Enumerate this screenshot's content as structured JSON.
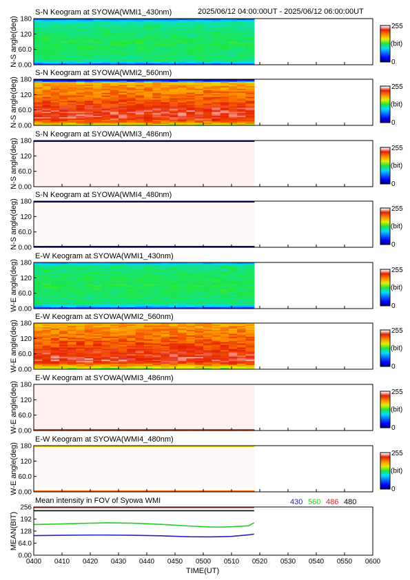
{
  "header": {
    "time_range": "2025/06/12 04:00:00UT - 2025/06/12 06:00:00UT"
  },
  "colorbar": {
    "max_label": "255",
    "unit_label": "(bit)",
    "min_label": "0"
  },
  "legend": {
    "items": [
      {
        "label": "430",
        "color": "#2222bb"
      },
      {
        "label": "560",
        "color": "#22cc22"
      },
      {
        "label": "486",
        "color": "#dd2222"
      },
      {
        "label": "480",
        "color": "#000000"
      }
    ]
  },
  "x_axis": {
    "label": "TIME(UT)",
    "ticks": [
      "0400",
      "0410",
      "0420",
      "0430",
      "0440",
      "0450",
      "0500",
      "0510",
      "0520",
      "0530",
      "0540",
      "0550",
      "0600"
    ],
    "range_minutes": [
      0,
      120
    ],
    "data_end_minute": 78
  },
  "chart_data": [
    {
      "type": "heatmap",
      "title": "S-N Keogram at SYOWA(WMI1_430nm)",
      "ylabel": "N-S angle(deg)",
      "yticks": [
        "0.00",
        "60.0",
        "120",
        "180"
      ],
      "ylim": [
        0,
        180
      ],
      "zlim": [
        0,
        255
      ],
      "profile": [
        [
          0,
          20
        ],
        [
          4,
          80
        ],
        [
          15,
          118
        ],
        [
          90,
          125
        ],
        [
          165,
          112
        ],
        [
          176,
          80
        ],
        [
          180,
          20
        ]
      ],
      "variation": 8
    },
    {
      "type": "heatmap",
      "title": "S-N Keogram at SYOWA(WMI2_560nm)",
      "ylabel": "N-S angle(deg)",
      "yticks": [
        "0.00",
        "60.0",
        "120",
        "180"
      ],
      "ylim": [
        0,
        180
      ],
      "zlim": [
        0,
        255
      ],
      "profile": [
        [
          0,
          145
        ],
        [
          8,
          190
        ],
        [
          25,
          225
        ],
        [
          60,
          225
        ],
        [
          100,
          205
        ],
        [
          150,
          190
        ],
        [
          170,
          175
        ],
        [
          173,
          10
        ],
        [
          180,
          10
        ]
      ],
      "variation": 15
    },
    {
      "type": "heatmap",
      "title": "S-N Keogram at SYOWA(WMI3_486nm)",
      "ylabel": "N-S angle(deg)",
      "yticks": [
        "0.00",
        "60.0",
        "120",
        "180"
      ],
      "ylim": [
        0,
        180
      ],
      "zlim": [
        0,
        255
      ],
      "profile": [
        [
          0,
          252
        ],
        [
          176,
          252
        ],
        [
          177,
          5
        ],
        [
          180,
          5
        ]
      ],
      "variation": 0
    },
    {
      "type": "heatmap",
      "title": "S-N Keogram at SYOWA(WMI4_480nm)",
      "ylabel": "N-S angle(deg)",
      "yticks": [
        "0.00",
        "60.0",
        "120",
        "180"
      ],
      "ylim": [
        0,
        180
      ],
      "zlim": [
        0,
        255
      ],
      "profile": [
        [
          0,
          5
        ],
        [
          5,
          5
        ],
        [
          6,
          254
        ],
        [
          172,
          254
        ],
        [
          173,
          235
        ],
        [
          175,
          5
        ],
        [
          180,
          5
        ]
      ],
      "variation": 0
    },
    {
      "type": "heatmap",
      "title": "E-W Keogram at SYOWA(WMI1_430nm)",
      "ylabel": "W-E angle(deg)",
      "yticks": [
        "0.00",
        "60.0",
        "120",
        "180"
      ],
      "ylim": [
        0,
        180
      ],
      "zlim": [
        0,
        255
      ],
      "profile": [
        [
          0,
          20
        ],
        [
          5,
          80
        ],
        [
          18,
          118
        ],
        [
          90,
          125
        ],
        [
          165,
          118
        ],
        [
          175,
          100
        ],
        [
          180,
          60
        ]
      ],
      "variation": 8
    },
    {
      "type": "heatmap",
      "title": "E-W Keogram at SYOWA(WMI2_560nm)",
      "ylabel": "W-E angle(deg)",
      "yticks": [
        "0.00",
        "60.0",
        "120",
        "180"
      ],
      "ylim": [
        0,
        180
      ],
      "zlim": [
        0,
        255
      ],
      "profile": [
        [
          0,
          140
        ],
        [
          10,
          175
        ],
        [
          30,
          230
        ],
        [
          60,
          222
        ],
        [
          110,
          205
        ],
        [
          160,
          190
        ],
        [
          180,
          180
        ]
      ],
      "variation": 15
    },
    {
      "type": "heatmap",
      "title": "E-W Keogram at SYOWA(WMI3_486nm)",
      "ylabel": "W-E angle(deg)",
      "yticks": [
        "0.00",
        "60.0",
        "120",
        "180"
      ],
      "ylim": [
        0,
        180
      ],
      "zlim": [
        0,
        255
      ],
      "profile": [
        [
          0,
          175
        ],
        [
          4,
          240
        ],
        [
          8,
          252
        ],
        [
          180,
          252
        ]
      ],
      "variation": 0
    },
    {
      "type": "heatmap",
      "title": "E-W Keogram at SYOWA(WMI4_480nm)",
      "ylabel": "W-E angle(deg)",
      "yticks": [
        "0.00",
        "60.0",
        "120",
        "180"
      ],
      "ylim": [
        0,
        180
      ],
      "zlim": [
        0,
        255
      ],
      "profile": [
        [
          0,
          175
        ],
        [
          4,
          215
        ],
        [
          7,
          254
        ],
        [
          172,
          254
        ],
        [
          175,
          215
        ],
        [
          178,
          155
        ],
        [
          180,
          155
        ]
      ],
      "variation": 0
    },
    {
      "type": "line",
      "title": "Mean intensity in FOV of Syowa WMI",
      "ylabel": "MEAN(BIT)",
      "yticks": [
        "0.00",
        "64.0",
        "128",
        "192",
        "256"
      ],
      "ylim": [
        0,
        256
      ],
      "x": [
        0,
        10,
        20,
        26,
        35,
        45,
        55,
        62,
        66,
        70,
        76,
        78
      ],
      "series": [
        {
          "name": "430",
          "color": "#2222bb",
          "values": [
            104,
            106,
            107,
            107,
            106,
            103,
            98,
            97,
            98,
            100,
            108,
            112
          ]
        },
        {
          "name": "560",
          "color": "#22cc22",
          "values": [
            163,
            166,
            170,
            172,
            170,
            164,
            155,
            150,
            149,
            151,
            156,
            172
          ]
        },
        {
          "name": "486",
          "color": "#dd2222",
          "values": [
            253,
            253,
            253,
            253,
            253,
            253,
            253,
            253,
            253,
            253,
            253,
            253
          ]
        },
        {
          "name": "480",
          "color": "#000000",
          "values": [
            236,
            236,
            236,
            236,
            236,
            236,
            236,
            236,
            236,
            236,
            236,
            236
          ]
        }
      ]
    }
  ]
}
